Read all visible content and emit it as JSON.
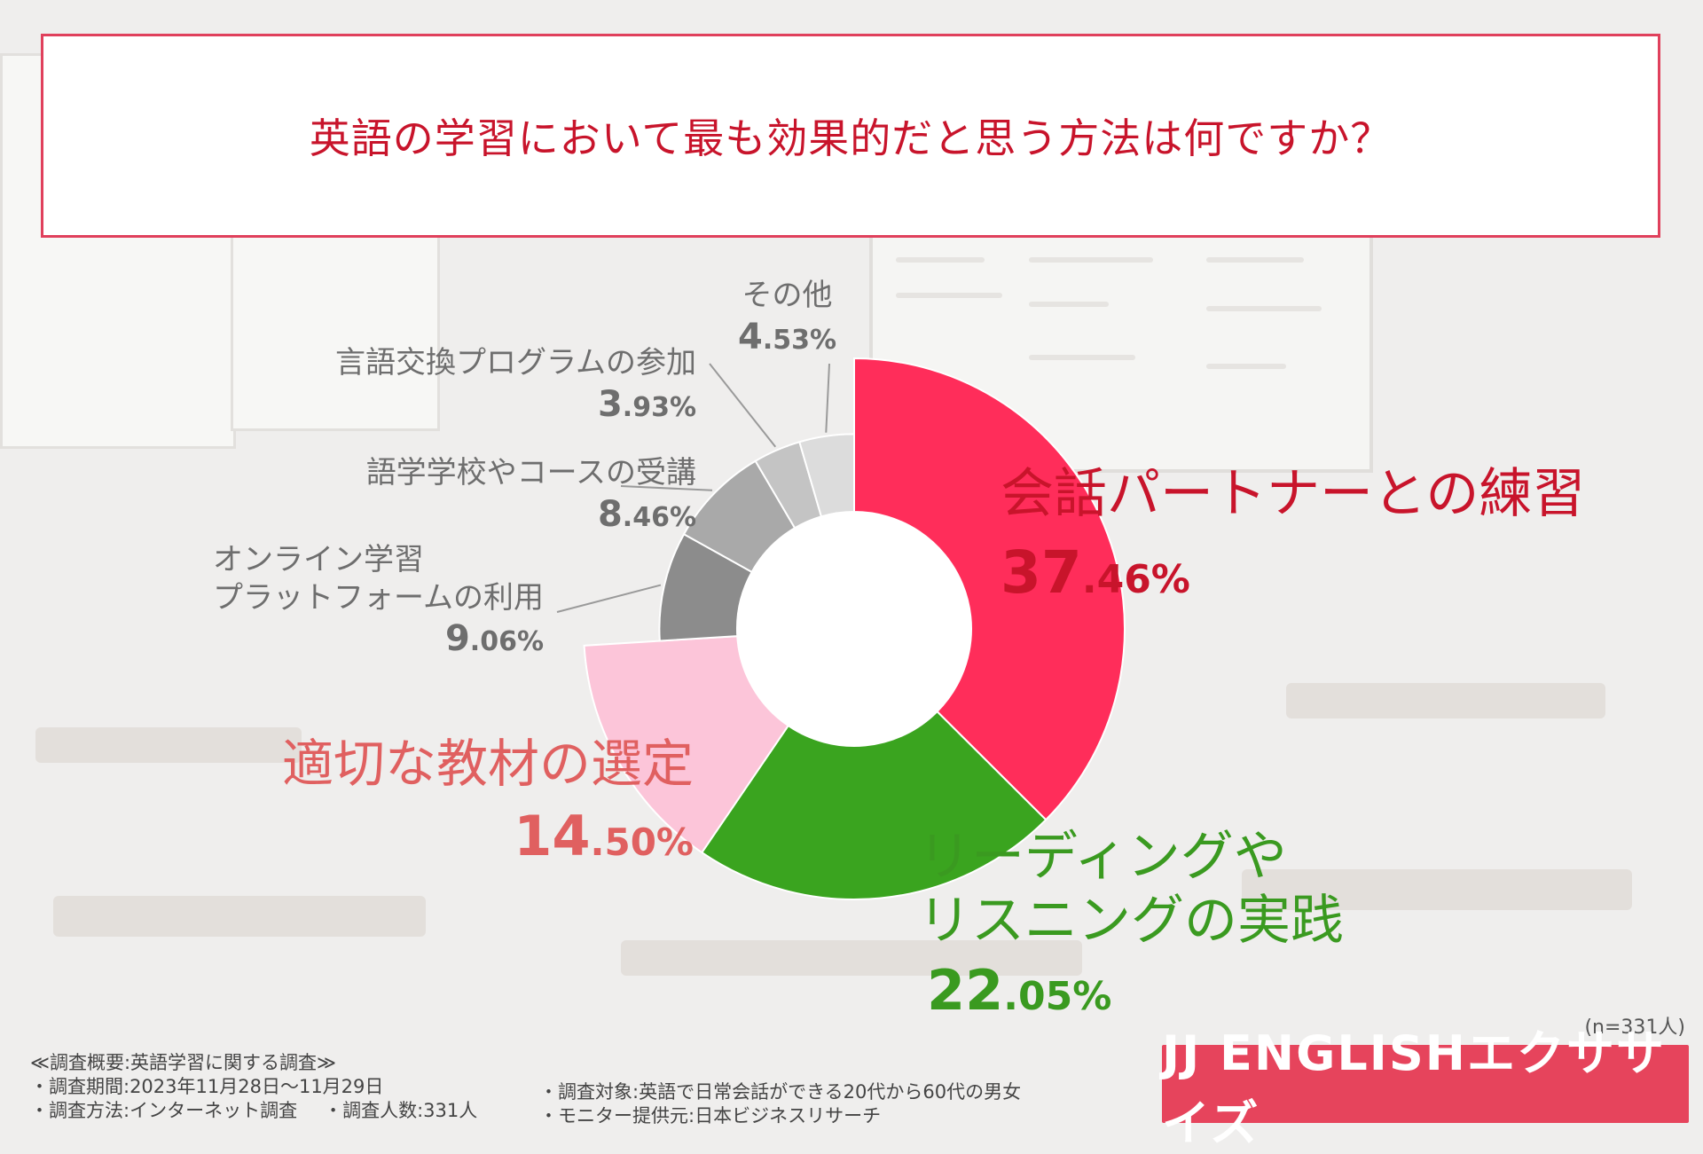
{
  "title": "英語の学習において最も効果的だと思う方法は何ですか？",
  "sample_size": "(n=331人)",
  "survey_notes": {
    "heading": "≪調査概要:英語学習に関する調査≫",
    "period": "・調査期間:2023年11月28日〜11月29日",
    "method": "・調査方法:インターネット調査",
    "count": "・調査人数:331人",
    "target": "・調査対象:英語で日常会話ができる20代から60代の男女",
    "provider": "・モニター提供元:日本ビジネスリサーチ"
  },
  "brand_logo": "JJ ENGLISHエクササイズ",
  "chart_data": {
    "type": "pie",
    "donut": true,
    "start_angle_deg": 0,
    "direction": "clockwise",
    "unit": "%",
    "slices": [
      {
        "label": "会話パートナーとの練習",
        "pct_int": "37",
        "pct_dec": ".46%",
        "value": 37.46,
        "color": "#ff2d5a",
        "radius_scale": 1.0
      },
      {
        "label": "リーディングやリスニングの実践",
        "pct_int": "22",
        "pct_dec": ".05%",
        "value": 22.05,
        "color": "#3aa41f",
        "radius_scale": 1.0
      },
      {
        "label": "適切な教材の選定",
        "pct_int": "14",
        "pct_dec": ".50%",
        "value": 14.5,
        "color": "#fcc5d9",
        "radius_scale": 1.0
      },
      {
        "label": "オンライン学習プラットフォームの利用",
        "pct_int": "9",
        "pct_dec": ".06%",
        "value": 9.06,
        "color": "#8c8c8c",
        "radius_scale": 0.72
      },
      {
        "label": "語学学校やコースの受講",
        "pct_int": "8",
        "pct_dec": ".46%",
        "value": 8.46,
        "color": "#a9a9a9",
        "radius_scale": 0.72
      },
      {
        "label": "言語交換プログラムの参加",
        "pct_int": "3",
        "pct_dec": ".93%",
        "value": 3.93,
        "color": "#c4c4c4",
        "radius_scale": 0.72
      },
      {
        "label": "その他",
        "pct_int": "4",
        "pct_dec": ".53%",
        "value": 4.53,
        "color": "#dcdcdc",
        "radius_scale": 0.72
      }
    ],
    "label_lines": {
      "green": [
        "リーディングや",
        "リスニングの実践"
      ],
      "online": [
        "オンライン学習",
        "プラットフォームの利用"
      ]
    }
  }
}
